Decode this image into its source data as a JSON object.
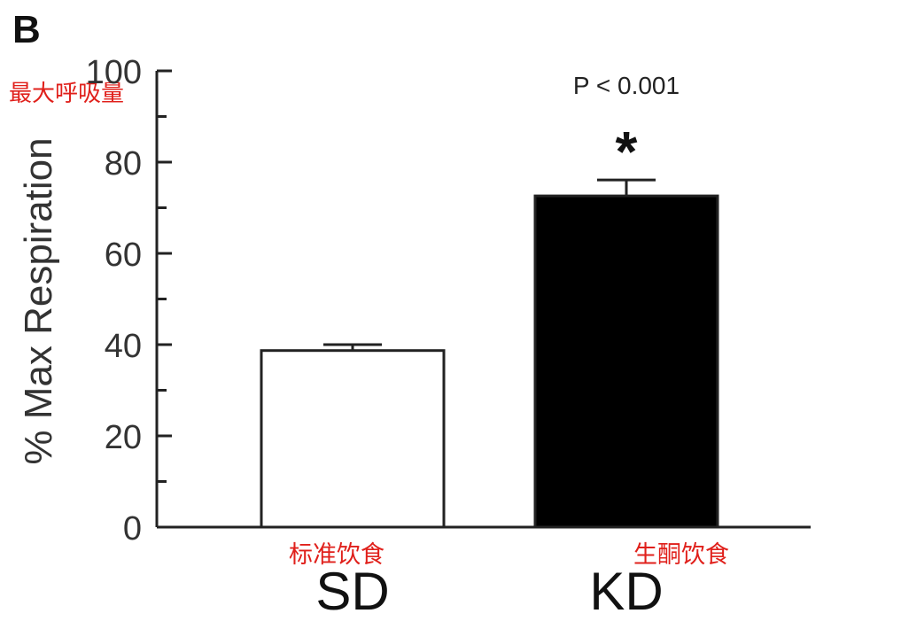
{
  "chart_data": {
    "type": "bar",
    "panel_label": "B",
    "title": "",
    "ylabel": "% Max Respiration",
    "ylabel_annotation": "最大呼吸量",
    "ylim": [
      0,
      100
    ],
    "yticks": [
      0,
      20,
      40,
      60,
      80,
      100
    ],
    "categories": [
      "SD",
      "KD"
    ],
    "category_annotations": [
      "标准饮食",
      "生酮饮食"
    ],
    "values": [
      38.7,
      72.6
    ],
    "errors": [
      1.3,
      3.5
    ],
    "bar_colors": [
      "#ffffff",
      "#000000"
    ],
    "significance": {
      "symbol": "*",
      "category": "KD",
      "p_text": "P < 0.001"
    },
    "annotation_color": "#e0201b",
    "grid": false,
    "legend": "none"
  }
}
